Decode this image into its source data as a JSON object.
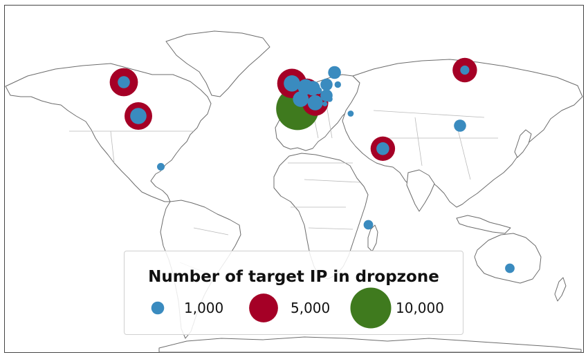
{
  "colors": {
    "small": "#3a8bbf",
    "medium": "#a50026",
    "large": "#3f7a1e",
    "coast": "#6b6b6b",
    "border": "#b9b9b9"
  },
  "legend": {
    "title": "Number of target IP in dropzone",
    "entries": [
      {
        "label": "1,000",
        "color": "small",
        "value": 1000
      },
      {
        "label": "5,000",
        "color": "medium",
        "value": 5000
      },
      {
        "label": "10,000",
        "color": "large",
        "value": 10000
      }
    ]
  },
  "map_data": {
    "projection": "equirectangular",
    "markers": [
      {
        "lon": 2.0,
        "lat": 41.0,
        "value": 11000
      },
      {
        "lon": -1.5,
        "lat": 51.5,
        "value": 5200
      },
      {
        "lon": -106.0,
        "lat": 52.0,
        "value": 4800
      },
      {
        "lon": -97.0,
        "lat": 38.0,
        "value": 4600
      },
      {
        "lon": 55.0,
        "lat": 24.5,
        "value": 3600
      },
      {
        "lon": 106.0,
        "lat": 57.0,
        "value": 3600
      },
      {
        "lon": 13.0,
        "lat": 43.5,
        "value": 4100
      },
      {
        "lon": 8.0,
        "lat": 48.5,
        "value": 3500
      },
      {
        "lon": -106.0,
        "lat": 52.0,
        "value": 900
      },
      {
        "lon": -97.0,
        "lat": 38.0,
        "value": 1600
      },
      {
        "lon": 55.0,
        "lat": 24.5,
        "value": 1000
      },
      {
        "lon": 106.0,
        "lat": 57.0,
        "value": 500
      },
      {
        "lon": -1.5,
        "lat": 51.5,
        "value": 1600
      },
      {
        "lon": 7.0,
        "lat": 50.0,
        "value": 1500
      },
      {
        "lon": 11.5,
        "lat": 49.5,
        "value": 1300
      },
      {
        "lon": 4.0,
        "lat": 45.0,
        "value": 1500
      },
      {
        "lon": 13.0,
        "lat": 43.5,
        "value": 1400
      },
      {
        "lon": 20.0,
        "lat": 51.0,
        "value": 900
      },
      {
        "lon": 25.0,
        "lat": 56.0,
        "value": 1000
      },
      {
        "lon": 20.0,
        "lat": 46.5,
        "value": 900
      },
      {
        "lon": 15.0,
        "lat": 48.5,
        "value": 300
      },
      {
        "lon": 19.0,
        "lat": 43.0,
        "value": 150
      },
      {
        "lon": 27.0,
        "lat": 51.0,
        "value": 250
      },
      {
        "lon": 35.0,
        "lat": 39.0,
        "value": 220
      },
      {
        "lon": 103.0,
        "lat": 34.0,
        "value": 900
      },
      {
        "lon": -83.0,
        "lat": 17.0,
        "value": 350
      },
      {
        "lon": 46.0,
        "lat": -7.0,
        "value": 550
      },
      {
        "lon": 134.0,
        "lat": -25.0,
        "value": 550
      },
      {
        "lon": 22.0,
        "lat": 45.0,
        "value": 200
      }
    ]
  }
}
